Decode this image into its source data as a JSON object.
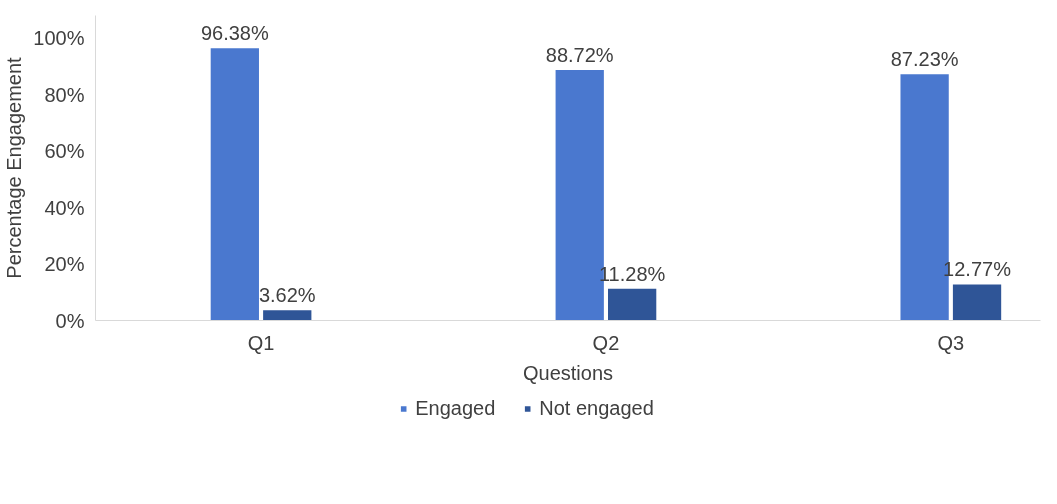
{
  "chart_data": {
    "type": "bar",
    "xlabel": "Questions",
    "ylabel": "Percentage Engagement",
    "categories": [
      "Q1",
      "Q2",
      "Q3"
    ],
    "series": [
      {
        "name": "Engaged",
        "color": "#4a78cf",
        "values": [
          96.38,
          88.72,
          87.23
        ],
        "value_labels": [
          "96.38%",
          "88.72%",
          "87.23%"
        ]
      },
      {
        "name": "Not engaged",
        "color": "#2f5597",
        "values": [
          3.62,
          11.28,
          12.77
        ],
        "value_labels": [
          "3.62%",
          "11.28%",
          "12.77%"
        ]
      }
    ],
    "ylim": [
      0,
      108
    ],
    "yticks": [
      {
        "value": 0,
        "label": "0%"
      },
      {
        "value": 20,
        "label": "20%"
      },
      {
        "value": 40,
        "label": "40%"
      },
      {
        "value": 60,
        "label": "60%"
      },
      {
        "value": 80,
        "label": "80%"
      },
      {
        "value": 100,
        "label": "100%"
      }
    ],
    "grid": false,
    "legend": "bottom"
  }
}
